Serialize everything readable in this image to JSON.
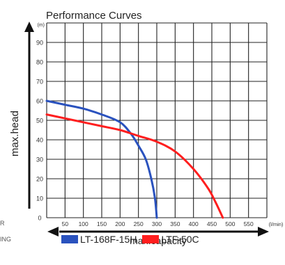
{
  "side_text": {
    "line1": "R",
    "line2": "ING"
  },
  "chart_data": {
    "type": "line",
    "title": "Performance Curves",
    "xlabel": "max.capacity",
    "ylabel": "max.head",
    "x_unit": "(l/min)",
    "y_unit": "(m)",
    "xlim": [
      0,
      600
    ],
    "ylim": [
      0,
      100
    ],
    "x_ticks": [
      50,
      100,
      150,
      200,
      250,
      300,
      350,
      400,
      450,
      500,
      550
    ],
    "y_ticks": [
      0,
      10,
      20,
      30,
      40,
      50,
      60,
      70,
      80,
      90
    ],
    "grid": true,
    "legend_position": "bottom",
    "series": [
      {
        "name": "LT-168F-15H",
        "color": "#2a52be",
        "x": [
          0,
          50,
          100,
          150,
          200,
          230,
          250,
          270,
          285,
          295,
          300
        ],
        "y": [
          60,
          58,
          56,
          53,
          49,
          43,
          37,
          30,
          20,
          10,
          0
        ]
      },
      {
        "name": "LTF-50C",
        "color": "#ff1e1e",
        "x": [
          0,
          50,
          100,
          150,
          200,
          250,
          300,
          350,
          400,
          440,
          460,
          480
        ],
        "y": [
          53,
          51,
          49,
          47,
          45,
          42,
          39,
          34,
          25,
          15,
          8,
          0
        ]
      }
    ]
  }
}
